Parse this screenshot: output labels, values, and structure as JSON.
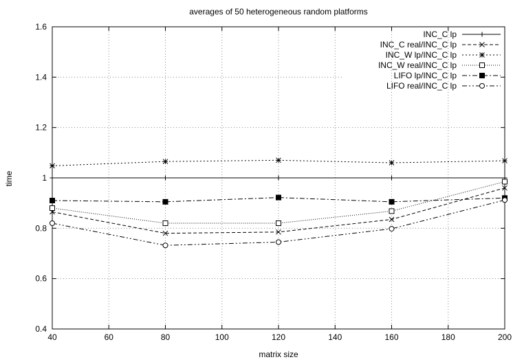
{
  "chart_data": {
    "type": "line",
    "title": "averages of 50 heterogeneous random platforms",
    "xlabel": "matrix size",
    "ylabel": "time",
    "xlim": [
      40,
      200
    ],
    "ylim": [
      0.4,
      1.6
    ],
    "x_ticks": [
      40,
      60,
      80,
      100,
      120,
      140,
      160,
      180,
      200
    ],
    "y_ticks": [
      0.4,
      0.6,
      0.8,
      1.0,
      1.2,
      1.4,
      1.6
    ],
    "x_tick_labels": [
      "40",
      "60",
      "80",
      "100",
      "120",
      "140",
      "160",
      "180",
      "200"
    ],
    "y_tick_labels": [
      "0.4",
      "0.6",
      "0.8",
      "1",
      "1.2",
      "1.4",
      "1.6"
    ],
    "grid": true,
    "legend_position": "top-right",
    "x": [
      40,
      80,
      120,
      160,
      200
    ],
    "series": [
      {
        "name": "INC_C lp",
        "values": [
          1.0,
          1.0,
          1.0,
          1.0,
          1.0
        ],
        "marker": "plus",
        "dash": "solid"
      },
      {
        "name": "INC_C real/INC_C lp",
        "values": [
          0.865,
          0.78,
          0.785,
          0.835,
          0.96
        ],
        "marker": "cross",
        "dash": "dashed"
      },
      {
        "name": "INC_W lp/INC_C lp",
        "values": [
          1.048,
          1.065,
          1.07,
          1.06,
          1.068
        ],
        "marker": "star",
        "dash": "short-dotted"
      },
      {
        "name": "INC_W real/INC_C lp",
        "values": [
          0.88,
          0.82,
          0.82,
          0.868,
          0.985
        ],
        "marker": "open-square",
        "dash": "dotted"
      },
      {
        "name": "LIFO lp/INC_C lp",
        "values": [
          0.91,
          0.905,
          0.922,
          0.905,
          0.92
        ],
        "marker": "filled-square",
        "dash": "dash-dot"
      },
      {
        "name": "LIFO real/INC_C lp",
        "values": [
          0.82,
          0.732,
          0.745,
          0.798,
          0.912
        ],
        "marker": "open-circle",
        "dash": "dash-dot-dot"
      }
    ]
  }
}
